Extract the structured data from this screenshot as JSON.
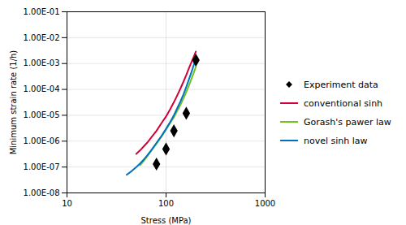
{
  "chart_data": {
    "type": "line",
    "xlabel": "Stress (MPa)",
    "ylabel": "Minimum strain rate (1/h)",
    "log": true,
    "grid": true,
    "legend": "right",
    "xlim": [
      10,
      1000
    ],
    "ylim": [
      1e-08,
      0.1
    ],
    "xticks": [
      10,
      100,
      1000
    ],
    "yticks": [
      {
        "value": 1e-08,
        "label": "1.00E-08"
      },
      {
        "value": 1e-07,
        "label": "1.00E-07"
      },
      {
        "value": 1e-06,
        "label": "1.00E-06"
      },
      {
        "value": 1e-05,
        "label": "1.00E-05"
      },
      {
        "value": 0.0001,
        "label": "1.00E-04"
      },
      {
        "value": 0.001,
        "label": "1.00E-03"
      },
      {
        "value": 0.01,
        "label": "1.00E-02"
      },
      {
        "value": 0.1,
        "label": "1.00E-01"
      }
    ],
    "series": [
      {
        "name": "Experiment data",
        "type": "scatter",
        "marker": "diamond",
        "color": "black",
        "x": [
          80,
          100,
          120,
          160,
          200
        ],
        "values": [
          1.3e-07,
          5e-07,
          2.5e-06,
          1.2e-05,
          0.00135
        ]
      },
      {
        "name": "conventional sinh",
        "type": "line",
        "color": "#d4003a",
        "x": [
          50,
          55,
          60,
          65,
          70,
          80,
          90,
          100,
          110,
          120,
          130,
          140,
          150,
          160,
          170,
          180,
          190,
          200
        ],
        "values": [
          3.2e-07,
          4.5e-07,
          6.5e-07,
          9e-07,
          1.3e-06,
          2.5e-06,
          5e-06,
          9e-06,
          1.7e-05,
          3.2e-05,
          6e-05,
          0.00011,
          0.0002,
          0.00036,
          0.00065,
          0.0011,
          0.0018,
          0.0029
        ]
      },
      {
        "name": "Gorash's pawer law",
        "type": "line",
        "color": "#70c020",
        "x": [
          55,
          60,
          65,
          70,
          80,
          90,
          100,
          110,
          120,
          130,
          140,
          150,
          160,
          170,
          180,
          190,
          200
        ],
        "values": [
          1.2e-07,
          1.8e-07,
          2.7e-07,
          4e-07,
          8e-07,
          1.5e-06,
          2.8e-06,
          5e-06,
          8.5e-06,
          1.5e-05,
          2.6e-05,
          4.5e-05,
          8e-05,
          0.00014,
          0.00025,
          0.00043,
          0.00075
        ]
      },
      {
        "name": "novel sinh law",
        "type": "line",
        "color": "#0070c0",
        "x": [
          40,
          45,
          50,
          55,
          60,
          65,
          70,
          80,
          90,
          100,
          110,
          120,
          130,
          140,
          150,
          160,
          170,
          180,
          190,
          200
        ],
        "values": [
          5e-08,
          7e-08,
          1e-07,
          1.4e-07,
          2e-07,
          2.9e-07,
          4.2e-07,
          8.5e-07,
          1.6e-06,
          3e-06,
          5.5e-06,
          1e-05,
          1.9e-05,
          3.5e-05,
          6.5e-05,
          0.000125,
          0.00024,
          0.00045,
          0.00085,
          0.0016
        ]
      }
    ]
  }
}
